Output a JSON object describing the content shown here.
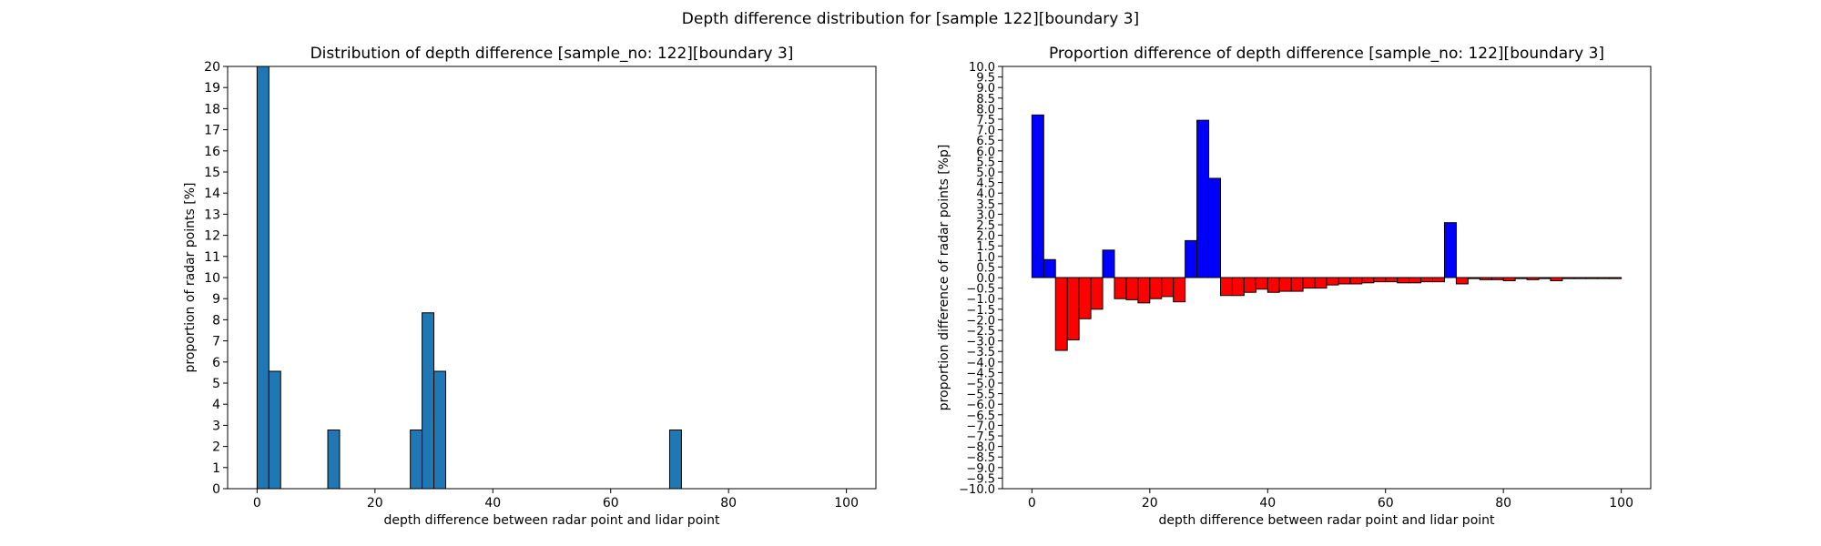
{
  "figure": {
    "suptitle": "Depth difference distribution for [sample 122][boundary 3]"
  },
  "chart_data": [
    {
      "type": "bar",
      "title": "Distribution of depth difference [sample_no: 122][boundary 3]",
      "xlabel": "depth difference between radar point and lidar point",
      "ylabel": "proportion of radar points [%]",
      "xlim": [
        -5,
        105
      ],
      "ylim": [
        0,
        20
      ],
      "xticks": [
        0,
        20,
        40,
        60,
        80,
        100
      ],
      "yticks": [
        0,
        1,
        2,
        3,
        4,
        5,
        6,
        7,
        8,
        9,
        10,
        11,
        12,
        13,
        14,
        15,
        16,
        17,
        18,
        19,
        20
      ],
      "bin_width": 2,
      "bar_color": "#1f77b4",
      "edge_color": "#000000",
      "bins": [
        {
          "x": 0,
          "value": 20.0
        },
        {
          "x": 2,
          "value": 5.56
        },
        {
          "x": 12,
          "value": 2.78
        },
        {
          "x": 26,
          "value": 2.78
        },
        {
          "x": 28,
          "value": 8.33
        },
        {
          "x": 30,
          "value": 5.56
        },
        {
          "x": 70,
          "value": 2.78
        }
      ]
    },
    {
      "type": "bar",
      "title": "Proportion difference of depth difference [sample_no: 122][boundary 3]",
      "xlabel": "depth difference between radar point and lidar point",
      "ylabel": "proportion difference of radar points [%p]",
      "xlim": [
        -5,
        105
      ],
      "ylim": [
        -10,
        10
      ],
      "xticks": [
        0,
        20,
        40,
        60,
        80,
        100
      ],
      "ytick_step": 0.5,
      "bin_width": 2,
      "positive_color": "#0000ff",
      "negative_color": "#ff0000",
      "edge_color": "#000000",
      "bins": [
        {
          "x": 0,
          "value": 7.7
        },
        {
          "x": 2,
          "value": 0.85
        },
        {
          "x": 4,
          "value": -3.45
        },
        {
          "x": 6,
          "value": -2.95
        },
        {
          "x": 8,
          "value": -1.95
        },
        {
          "x": 10,
          "value": -1.5
        },
        {
          "x": 12,
          "value": 1.3
        },
        {
          "x": 14,
          "value": -1.0
        },
        {
          "x": 16,
          "value": -1.05
        },
        {
          "x": 18,
          "value": -1.2
        },
        {
          "x": 20,
          "value": -1.0
        },
        {
          "x": 22,
          "value": -0.9
        },
        {
          "x": 24,
          "value": -1.15
        },
        {
          "x": 26,
          "value": 1.75
        },
        {
          "x": 28,
          "value": 7.45
        },
        {
          "x": 30,
          "value": 4.7
        },
        {
          "x": 32,
          "value": -0.85
        },
        {
          "x": 34,
          "value": -0.85
        },
        {
          "x": 36,
          "value": -0.7
        },
        {
          "x": 38,
          "value": -0.55
        },
        {
          "x": 40,
          "value": -0.7
        },
        {
          "x": 42,
          "value": -0.65
        },
        {
          "x": 44,
          "value": -0.65
        },
        {
          "x": 46,
          "value": -0.5
        },
        {
          "x": 48,
          "value": -0.5
        },
        {
          "x": 50,
          "value": -0.35
        },
        {
          "x": 52,
          "value": -0.3
        },
        {
          "x": 54,
          "value": -0.3
        },
        {
          "x": 56,
          "value": -0.25
        },
        {
          "x": 58,
          "value": -0.2
        },
        {
          "x": 60,
          "value": -0.2
        },
        {
          "x": 62,
          "value": -0.25
        },
        {
          "x": 64,
          "value": -0.25
        },
        {
          "x": 66,
          "value": -0.2
        },
        {
          "x": 68,
          "value": -0.2
        },
        {
          "x": 70,
          "value": 2.6
        },
        {
          "x": 72,
          "value": -0.3
        },
        {
          "x": 74,
          "value": -0.05
        },
        {
          "x": 76,
          "value": -0.1
        },
        {
          "x": 78,
          "value": -0.1
        },
        {
          "x": 80,
          "value": -0.15
        },
        {
          "x": 82,
          "value": -0.05
        },
        {
          "x": 84,
          "value": -0.1
        },
        {
          "x": 86,
          "value": -0.05
        },
        {
          "x": 88,
          "value": -0.15
        },
        {
          "x": 90,
          "value": -0.05
        },
        {
          "x": 92,
          "value": -0.05
        },
        {
          "x": 94,
          "value": -0.05
        },
        {
          "x": 96,
          "value": -0.05
        },
        {
          "x": 98,
          "value": -0.05
        }
      ]
    }
  ]
}
